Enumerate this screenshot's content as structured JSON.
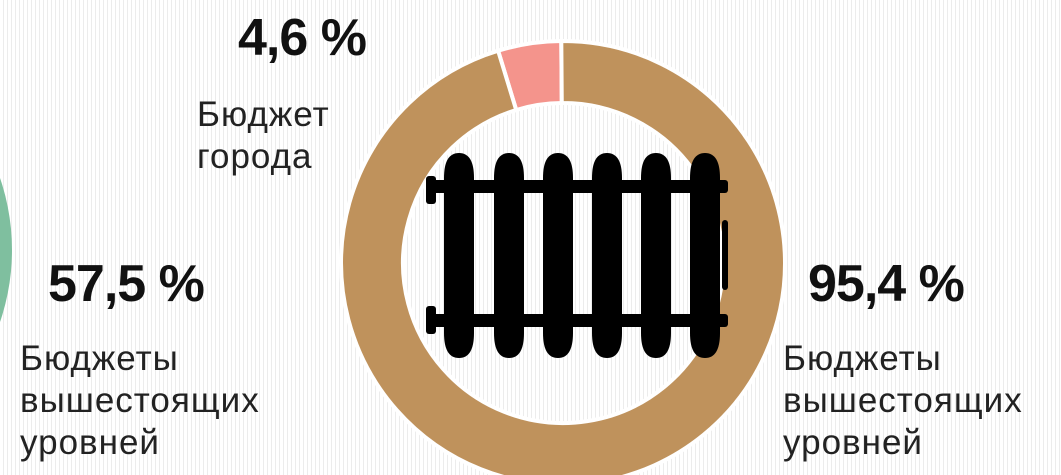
{
  "chart_data": [
    {
      "type": "pie",
      "categories": [
        "Бюджеты вышестоящих уровней"
      ],
      "values": [
        57.5
      ],
      "value_labels": [
        "57,5 %"
      ],
      "series_labels": [
        [
          "Бюджеты",
          "вышестоящих",
          "уровней"
        ]
      ],
      "colors": [
        "#7fbf9f"
      ],
      "partially_visible": true
    },
    {
      "type": "pie",
      "donut": true,
      "categories": [
        "Бюджет города",
        "Бюджеты вышестоящих уровней"
      ],
      "values": [
        4.6,
        95.4
      ],
      "value_labels": [
        "4,6 %",
        "95,4 %"
      ],
      "series_labels": [
        [
          "Бюджет",
          "города"
        ],
        [
          "Бюджеты",
          "вышестоящих",
          "уровней"
        ]
      ],
      "colors": [
        "#f4948c",
        "#bf925c"
      ],
      "center_icon": "radiator-icon"
    }
  ]
}
